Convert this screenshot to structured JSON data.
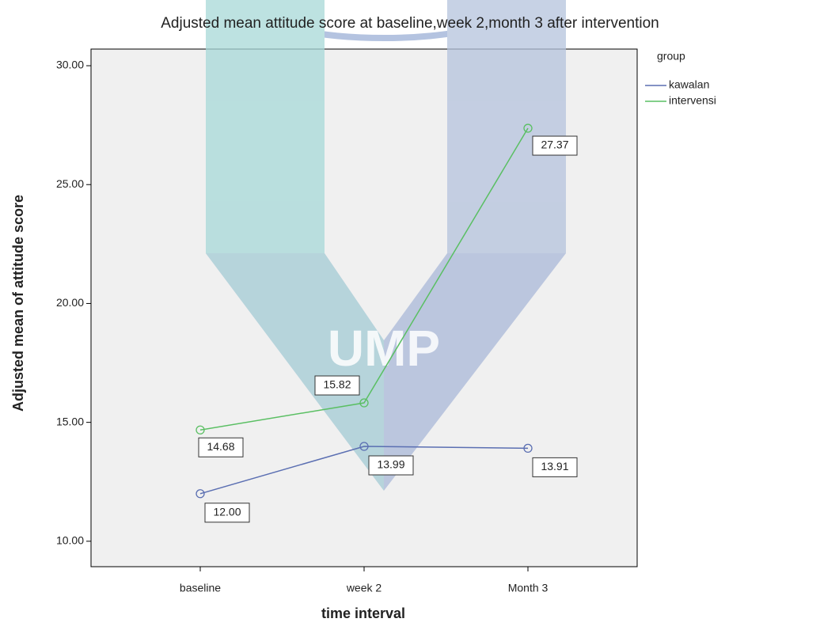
{
  "chart_data": {
    "type": "line",
    "title": "Adjusted mean attitude  score  at baseline,week 2,month 3 after intervention",
    "xlabel": "time interval",
    "ylabel": "Adjusted mean of attitude score",
    "categories": [
      "baseline",
      "week 2",
      "Month 3"
    ],
    "legend_title": "group",
    "legend": "right",
    "series": [
      {
        "name": "kawalan",
        "color": "#5b6fb2",
        "values": [
          12.0,
          13.99,
          13.91
        ],
        "value_labels": [
          "12.00",
          "13.99",
          "13.91"
        ]
      },
      {
        "name": "intervensi",
        "color": "#5abf63",
        "values": [
          14.68,
          15.82,
          27.37
        ],
        "value_labels": [
          "14.68",
          "15.82",
          "27.37"
        ]
      }
    ],
    "ylim": [
      8.93,
      30.7
    ],
    "yticks": [
      {
        "value": 10,
        "label": "10.00"
      },
      {
        "value": 15,
        "label": "15.00"
      },
      {
        "value": 20,
        "label": "20.00"
      },
      {
        "value": 25,
        "label": "25.00"
      },
      {
        "value": 30,
        "label": "30.00"
      }
    ]
  },
  "watermark": "UMP"
}
